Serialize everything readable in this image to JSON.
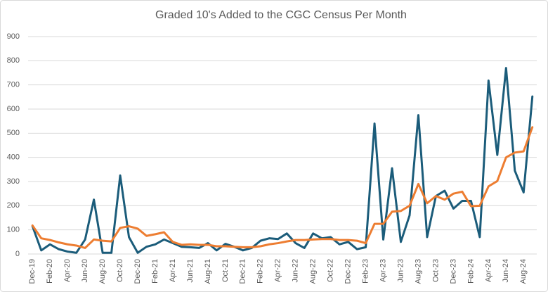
{
  "chart_data": {
    "type": "line",
    "title": "Graded 10's Added to the CGC Census Per Month",
    "categories": [
      "Dec-19",
      null,
      "Feb-20",
      null,
      "Apr-20",
      null,
      "Jun-20",
      null,
      "Aug-20",
      null,
      "Oct-20",
      null,
      "Dec-20",
      null,
      "Feb-21",
      null,
      "Apr-21",
      null,
      "Jun-21",
      null,
      "Aug-21",
      null,
      "Oct-21",
      null,
      "Dec-21",
      null,
      "Feb-22",
      null,
      "Apr-22",
      null,
      "Jun-22",
      null,
      "Aug-22",
      null,
      "Oct-22",
      null,
      "Dec-22",
      null,
      "Feb-23",
      null,
      "Apr-23",
      null,
      "Jun-23",
      null,
      "Aug-23",
      null,
      "Oct-23",
      null,
      "Dec-23",
      null,
      "Feb-24",
      null,
      "Apr-24",
      null,
      "Jun-24",
      null,
      "Aug-24",
      null
    ],
    "series": [
      {
        "color": "#1b5c7a",
        "values": [
          115,
          15,
          40,
          20,
          10,
          5,
          60,
          225,
          5,
          5,
          325,
          70,
          5,
          30,
          40,
          60,
          45,
          30,
          28,
          25,
          45,
          15,
          42,
          30,
          15,
          25,
          55,
          65,
          62,
          85,
          45,
          25,
          85,
          65,
          70,
          40,
          50,
          20,
          28,
          540,
          60,
          355,
          50,
          160,
          575,
          70,
          240,
          262,
          188,
          220,
          220,
          70,
          718,
          410,
          770,
          345,
          255,
          652
        ]
      },
      {
        "color": "#ed7d31",
        "values": [
          118,
          65,
          58,
          48,
          40,
          35,
          25,
          60,
          55,
          52,
          108,
          115,
          105,
          75,
          82,
          90,
          50,
          38,
          40,
          38,
          38,
          32,
          32,
          30,
          28,
          28,
          32,
          40,
          45,
          52,
          58,
          58,
          60,
          62,
          62,
          58,
          58,
          55,
          45,
          125,
          125,
          175,
          178,
          200,
          290,
          210,
          240,
          225,
          250,
          258,
          198,
          200,
          280,
          302,
          400,
          420,
          425,
          525
        ]
      }
    ],
    "ylim": [
      0,
      900
    ],
    "yticks": [
      0,
      100,
      200,
      300,
      400,
      500,
      600,
      700,
      800,
      900
    ],
    "grid": true
  }
}
